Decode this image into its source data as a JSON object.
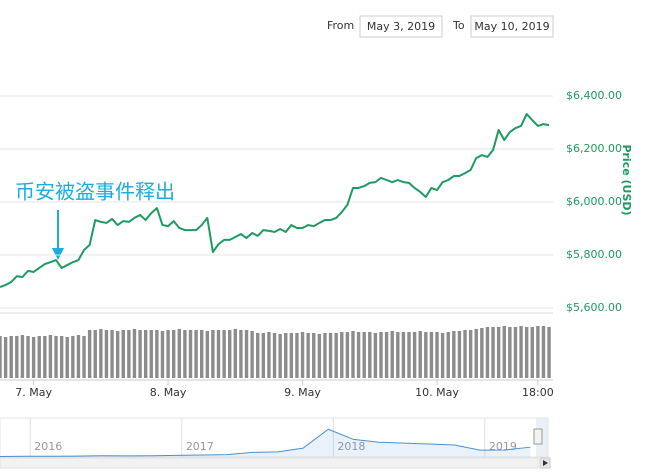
{
  "controls": {
    "from_label": "From",
    "from": "May 3, 2019",
    "to_label": "To",
    "to": "May 10, 2019"
  },
  "chart_data": [
    {
      "type": "line",
      "annotation": "币安被盗事件释出",
      "y_label": "Price (USD)",
      "xlim": [
        0,
        98.7
      ],
      "xticks": [
        {
          "value": 6,
          "label": "7. May"
        },
        {
          "value": 30,
          "label": "8. May"
        },
        {
          "value": 54,
          "label": "9. May"
        },
        {
          "value": 78,
          "label": "10. May"
        },
        {
          "value": 96,
          "label": "18:00"
        }
      ],
      "ylim": [
        5530,
        6530
      ],
      "yticks": [
        {
          "value": 5600,
          "label": "$5,600.00"
        },
        {
          "value": 5800,
          "label": "$5,800.00"
        },
        {
          "value": 6000,
          "label": "$6,000.00"
        },
        {
          "value": 6200,
          "label": "$6,200.00"
        },
        {
          "value": 6400,
          "label": "$6,400.00"
        }
      ],
      "y2lim": [
        0,
        70
      ],
      "grid": true,
      "label_color": "#1e9b61",
      "series": [
        {
          "color": "#1e9b61",
          "values": [
            5679,
            5687,
            5698,
            5720,
            5717,
            5740,
            5736,
            5751,
            5766,
            5773,
            5781,
            5751,
            5762,
            5773,
            5781,
            5819,
            5838,
            5932,
            5925,
            5921,
            5936,
            5913,
            5928,
            5925,
            5940,
            5951,
            5932,
            5958,
            5977,
            5913,
            5909,
            5928,
            5902,
            5894,
            5894,
            5894,
            5913,
            5940,
            5811,
            5841,
            5857,
            5857,
            5868,
            5879,
            5864,
            5883,
            5872,
            5894,
            5891,
            5887,
            5898,
            5887,
            5913,
            5902,
            5902,
            5913,
            5909,
            5921,
            5932,
            5932,
            5940,
            5962,
            5989,
            6053,
            6053,
            6060,
            6072,
            6075,
            6091,
            6083,
            6075,
            6083,
            6075,
            6072,
            6053,
            6038,
            6019,
            6053,
            6045,
            6075,
            6083,
            6098,
            6098,
            6109,
            6121,
            6166,
            6177,
            6170,
            6196,
            6272,
            6234,
            6264,
            6279,
            6287,
            6332,
            6309,
            6287,
            6294,
            6290
          ]
        },
        {
          "type": "bar",
          "axis": "y2",
          "color": "#8c8c8c",
          "values": [
            42,
            41,
            42,
            42,
            43,
            42,
            41,
            42,
            42,
            43,
            42,
            42,
            41,
            42,
            43,
            42,
            48,
            48,
            49,
            48,
            48,
            47,
            48,
            48,
            49,
            48,
            48,
            48,
            48,
            47,
            48,
            48,
            49,
            48,
            48,
            48,
            48,
            47,
            48,
            48,
            48,
            48,
            49,
            48,
            48,
            47,
            45,
            45,
            46,
            45,
            44,
            45,
            45,
            45,
            46,
            45,
            45,
            44,
            45,
            45,
            45,
            46,
            46,
            47,
            46,
            46,
            46,
            45,
            46,
            46,
            47,
            46,
            46,
            46,
            46,
            47,
            46,
            46,
            46,
            45,
            46,
            47,
            47,
            48,
            48,
            49,
            50,
            51,
            51,
            51,
            52,
            51,
            51,
            52,
            51,
            51,
            52,
            52,
            51
          ]
        }
      ]
    },
    {
      "type": "area",
      "xlim": [
        0,
        21.7
      ],
      "xticks": [
        {
          "value": 1.2,
          "label": "2016"
        },
        {
          "value": 7.2,
          "label": "2017"
        },
        {
          "value": 13.2,
          "label": "2018"
        },
        {
          "value": 19.2,
          "label": "2019"
        }
      ],
      "ylim": [
        0,
        20000
      ],
      "series": [
        {
          "color": "#4a8fd6",
          "values": [
            300,
            430,
            420,
            450,
            650,
            580,
            650,
            900,
            1100,
            1300,
            2500,
            2800,
            4800,
            15000,
            9500,
            8000,
            7500,
            7000,
            6500,
            3700,
            3800,
            5300
          ]
        }
      ]
    }
  ]
}
